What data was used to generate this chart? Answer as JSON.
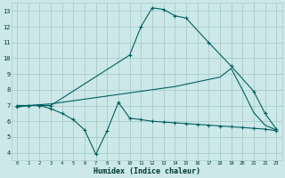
{
  "xlabel": "Humidex (Indice chaleur)",
  "bg_color": "#cce8e8",
  "grid_color": "#aacccc",
  "line_color": "#006060",
  "xlim": [
    -0.5,
    23.5
  ],
  "ylim": [
    3.5,
    13.5
  ],
  "yticks": [
    4,
    5,
    6,
    7,
    8,
    9,
    10,
    11,
    12,
    13
  ],
  "xticks": [
    0,
    1,
    2,
    3,
    4,
    5,
    6,
    7,
    8,
    9,
    10,
    11,
    12,
    13,
    14,
    15,
    16,
    17,
    18,
    19,
    20,
    21,
    22,
    23
  ],
  "line1_x": [
    0,
    1,
    2,
    3,
    10,
    11,
    12,
    13,
    14,
    15,
    17,
    19,
    21,
    22,
    23
  ],
  "line1_y": [
    7.0,
    7.0,
    7.0,
    7.0,
    10.2,
    12.0,
    13.2,
    13.1,
    12.7,
    12.55,
    11.0,
    9.5,
    7.9,
    6.5,
    5.5
  ],
  "line2_x": [
    0,
    1,
    2,
    3,
    4,
    5,
    6,
    7,
    8,
    9,
    10,
    11,
    12,
    13,
    14,
    15,
    16,
    17,
    18,
    19,
    20,
    21,
    22,
    23
  ],
  "line2_y": [
    6.9,
    7.0,
    7.05,
    7.1,
    7.2,
    7.3,
    7.4,
    7.5,
    7.6,
    7.7,
    7.8,
    7.9,
    8.0,
    8.1,
    8.2,
    8.35,
    8.5,
    8.65,
    8.8,
    9.35,
    8.0,
    6.55,
    5.75,
    5.45
  ],
  "line3_x": [
    0,
    1,
    2,
    3,
    4,
    5,
    6,
    7,
    8,
    9,
    10,
    11,
    12,
    13,
    14,
    15,
    16,
    17,
    18,
    19,
    20,
    21,
    22,
    23
  ],
  "line3_y": [
    6.9,
    7.0,
    7.0,
    6.8,
    6.5,
    6.1,
    5.45,
    3.9,
    5.4,
    7.2,
    6.2,
    6.1,
    6.0,
    5.95,
    5.9,
    5.85,
    5.8,
    5.75,
    5.7,
    5.65,
    5.6,
    5.55,
    5.5,
    5.4
  ]
}
